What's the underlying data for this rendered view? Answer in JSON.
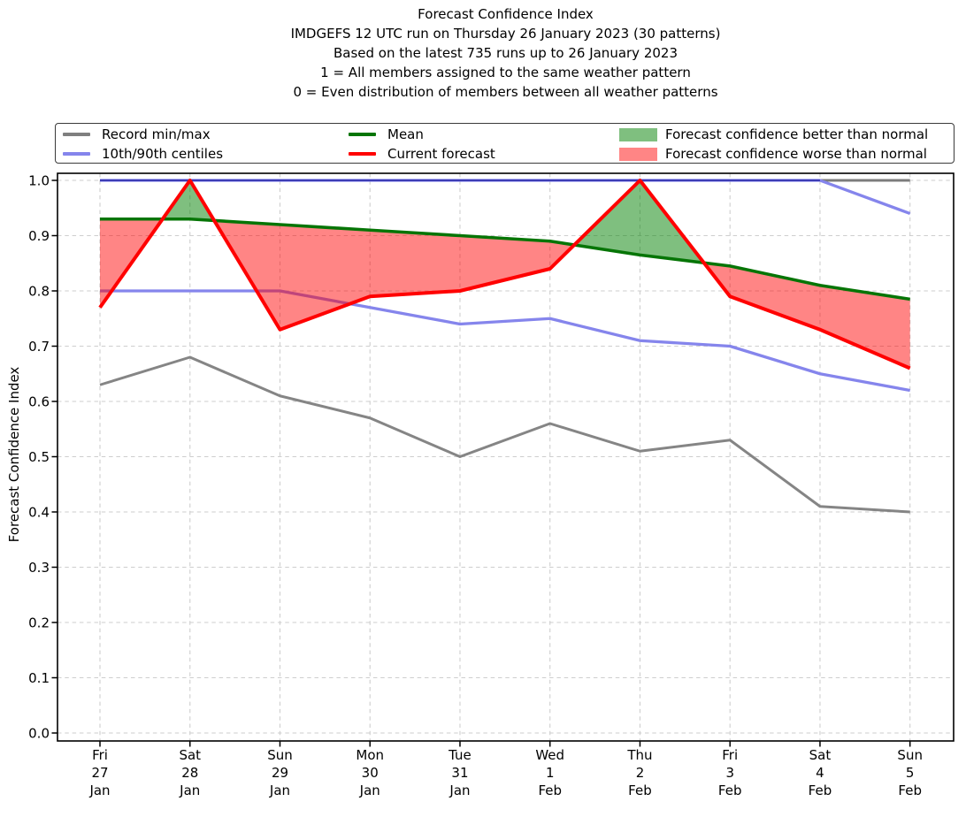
{
  "header": {
    "title": "Forecast Confidence Index",
    "subtitles": [
      "IMDGEFS 12 UTC run on Thursday 26 January 2023 (30 patterns)",
      "Based on the latest 735 runs up to 26 January 2023",
      "1 = All members assigned to the same weather pattern",
      "0 = Even distribution of members between all weather patterns"
    ]
  },
  "legend": {
    "items": [
      {
        "label": "Record min/max",
        "swatch": "line",
        "color": "#7f7f7f"
      },
      {
        "label": "10th/90th centiles",
        "swatch": "line",
        "color": "#8585ec"
      },
      {
        "label": "Mean",
        "swatch": "line",
        "color": "#067506"
      },
      {
        "label": "Current forecast",
        "swatch": "line",
        "color": "#ff0000"
      },
      {
        "label": "Forecast confidence better than normal",
        "swatch": "patch",
        "color": "rgba(0,128,0,0.5)"
      },
      {
        "label": "Forecast confidence worse than normal",
        "swatch": "patch",
        "color": "rgba(255,0,0,0.48)"
      }
    ]
  },
  "chart_data": {
    "type": "line",
    "title": "Forecast Confidence Index",
    "ylabel": "Forecast Confidence Index",
    "ylim": [
      0.0,
      1.0
    ],
    "yticks": [
      0.0,
      0.1,
      0.2,
      0.3,
      0.4,
      0.5,
      0.6,
      0.7,
      0.8,
      0.9,
      1.0
    ],
    "grid": true,
    "legend_position": "top",
    "x_labels": [
      [
        "Fri",
        "27",
        "Jan"
      ],
      [
        "Sat",
        "28",
        "Jan"
      ],
      [
        "Sun",
        "29",
        "Jan"
      ],
      [
        "Mon",
        "30",
        "Jan"
      ],
      [
        "Tue",
        "31",
        "Jan"
      ],
      [
        "Wed",
        "1",
        "Feb"
      ],
      [
        "Thu",
        "2",
        "Feb"
      ],
      [
        "Fri",
        "3",
        "Feb"
      ],
      [
        "Sat",
        "4",
        "Feb"
      ],
      [
        "Sun",
        "5",
        "Feb"
      ]
    ],
    "series": [
      {
        "name": "Record max",
        "key": "record_max",
        "color": "#7c7c7c",
        "values": [
          1.0,
          1.0,
          1.0,
          1.0,
          1.0,
          1.0,
          1.0,
          1.0,
          1.0,
          1.0
        ]
      },
      {
        "name": "Record min",
        "key": "record_min",
        "color": "#858585",
        "values": [
          0.63,
          0.68,
          0.61,
          0.57,
          0.5,
          0.56,
          0.51,
          0.53,
          0.41,
          0.4
        ]
      },
      {
        "name": "90th centile",
        "key": "centile_90",
        "color": "#8585ec",
        "values": [
          1.0,
          1.0,
          1.0,
          1.0,
          1.0,
          1.0,
          1.0,
          1.0,
          1.0,
          0.94
        ]
      },
      {
        "name": "10th centile",
        "key": "centile_10",
        "color": "#8585ec",
        "values": [
          0.8,
          0.8,
          0.8,
          0.77,
          0.74,
          0.75,
          0.71,
          0.7,
          0.65,
          0.62
        ]
      },
      {
        "name": "Mean",
        "key": "mean",
        "color": "#067506",
        "values": [
          0.93,
          0.93,
          0.92,
          0.91,
          0.9,
          0.89,
          0.865,
          0.845,
          0.81,
          0.785
        ]
      },
      {
        "name": "Current forecast",
        "key": "current",
        "color": "#ff0000",
        "values": [
          0.77,
          1.0,
          0.73,
          0.79,
          0.8,
          0.84,
          1.0,
          0.79,
          0.73,
          0.66
        ]
      }
    ],
    "fills": [
      {
        "name": "Forecast confidence better than normal",
        "between": [
          "current",
          "mean"
        ],
        "where": "current>mean",
        "color": "#008000",
        "opacity": 0.5
      },
      {
        "name": "Forecast confidence worse than normal",
        "between": [
          "current",
          "mean"
        ],
        "where": "current<mean",
        "color": "#ff0000",
        "opacity": 0.48
      }
    ]
  }
}
